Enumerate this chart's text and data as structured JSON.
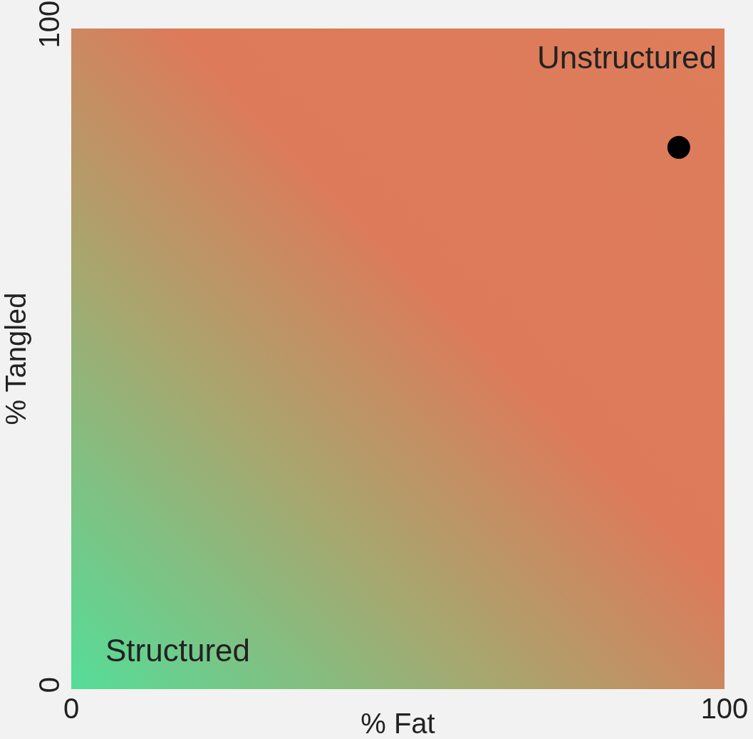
{
  "chart_data": {
    "type": "scatter",
    "xlabel": "% Fat",
    "ylabel": "% Tangled",
    "x": [
      93
    ],
    "values": [
      82
    ],
    "color": "#000000",
    "marker": "circle",
    "xlim": [
      0,
      100
    ],
    "xticks": [
      0,
      100
    ],
    "ylim": [
      0,
      100
    ],
    "yticks": [
      0,
      100
    ],
    "annotations": [
      "Unstructured",
      "Structured"
    ]
  }
}
